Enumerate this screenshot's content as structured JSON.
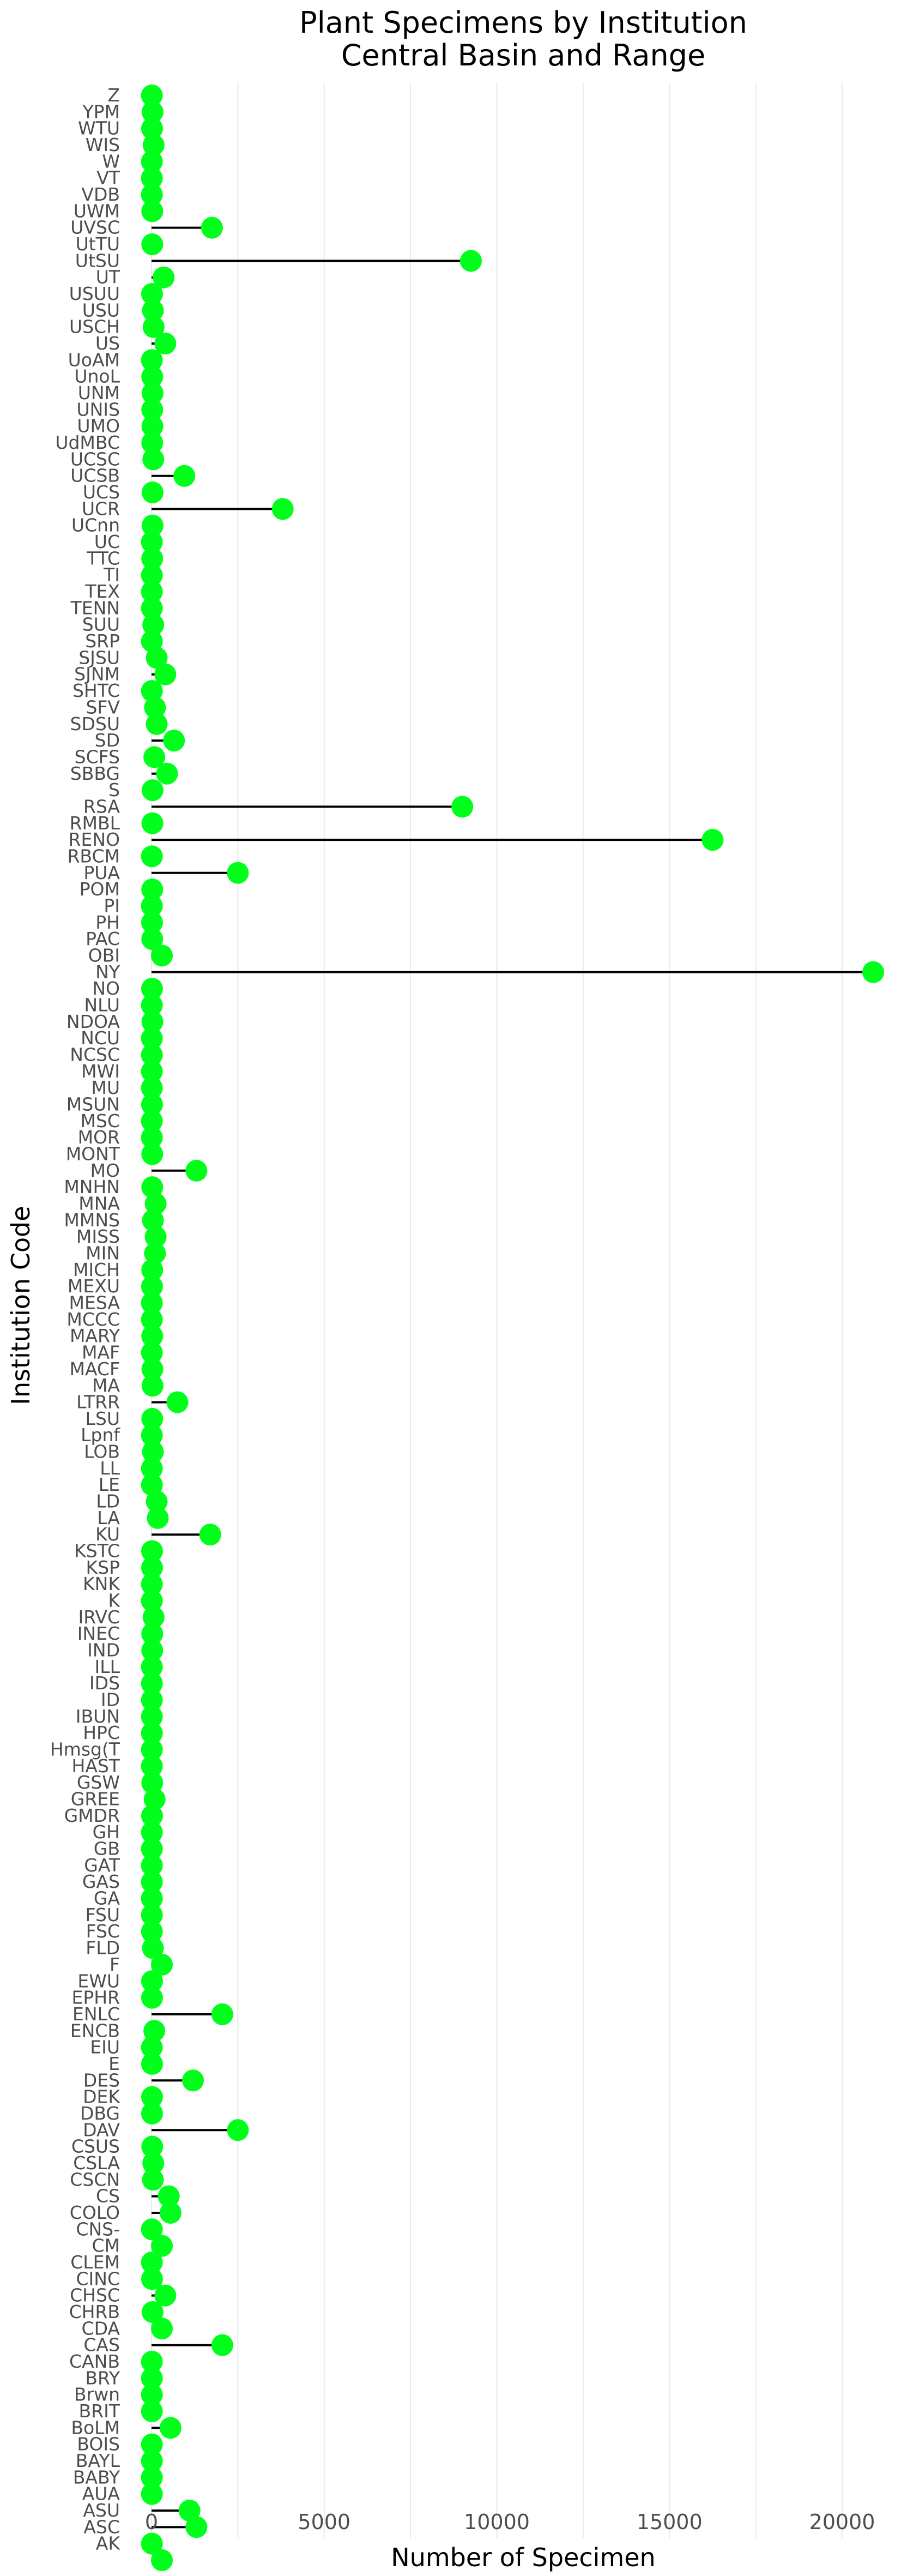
{
  "chart_data": {
    "type": "lollipop",
    "title": "Plant Specimens by Institution",
    "subtitle": "Central Basin and Range",
    "xlabel": "Number of Specimen",
    "ylabel": "Institution Code",
    "xlim": [
      -600,
      21500
    ],
    "x_ticks": [
      0,
      5000,
      10000,
      15000,
      20000
    ],
    "grid": "vertical",
    "point_color": "#00ff1a",
    "stem_color": "#000000",
    "legend": "none",
    "categories": [
      "Z",
      "YPM",
      "WTU",
      "WIS",
      "W",
      "VT",
      "VDB",
      "UWM",
      "UVSC",
      "UtTU",
      "UtSU",
      "UT",
      "USUU",
      "USU",
      "USCH",
      "US",
      "UoAM",
      "UnoL",
      "UNM",
      "UNIS",
      "UMO",
      "UdMBC",
      "UCSC",
      "UCSB",
      "UCS",
      "UCR",
      "UCnn",
      "UC",
      "TTC",
      "TI",
      "TEX",
      "TENN",
      "SUU",
      "SRP",
      "SJSU",
      "SJNM",
      "SHTC",
      "SFV",
      "SDSU",
      "SD",
      "SCFS",
      "SBBG",
      "S",
      "RSA",
      "RMBL",
      "RENO",
      "RBCM",
      "PUA",
      "POM",
      "PI",
      "PH",
      "PAC",
      "OBI",
      "NY",
      "NO",
      "NLU",
      "NDOA",
      "NCU",
      "NCSC",
      "MWI",
      "MU",
      "MSUN",
      "MSC",
      "MOR",
      "MONT",
      "MO",
      "MNHN",
      "MNA",
      "MMNS",
      "MISS",
      "MIN",
      "MICH",
      "MEXU",
      "MESA",
      "MCCC",
      "MARY",
      "MAF",
      "MACF",
      "MA",
      "LTRR",
      "LSU",
      "Lpnf",
      "LOB",
      "LL",
      "LE",
      "LD",
      "LA",
      "KU",
      "KSTC",
      "KSP",
      "KNK",
      "K",
      "IRVC",
      "INEC",
      "IND",
      "ILL",
      "IDS",
      "ID",
      "IBUN",
      "HPC",
      "Hmsg(T",
      "HAST",
      "GSW",
      "GREE",
      "GMDR",
      "GH",
      "GB",
      "GAT",
      "GAS",
      "GA",
      "FSU",
      "FSC",
      "FLD",
      "F",
      "EWU",
      "EPHR",
      "ENLC",
      "ENCB",
      "EIU",
      "E",
      "DES",
      "DEK",
      "DBG",
      "DAV",
      "CSUS",
      "CSLA",
      "CSCN",
      "CS",
      "COLO",
      "CNS-",
      "CM",
      "CLEM",
      "CINC",
      "CHSC",
      "CHRB",
      "CDA",
      "CAS",
      "CANB",
      "BRY",
      "Brwn",
      "BRIT",
      "BoLM",
      "BOIS",
      "BAYL",
      "BABY",
      "AUA",
      "ASU",
      "ASC",
      "AK",
      ""
    ],
    "values": [
      10,
      30,
      15,
      60,
      10,
      10,
      10,
      20,
      1750,
      20,
      9250,
      350,
      15,
      40,
      60,
      400,
      10,
      20,
      30,
      20,
      25,
      20,
      50,
      950,
      30,
      3800,
      30,
      10,
      20,
      10,
      10,
      10,
      50,
      10,
      150,
      400,
      10,
      100,
      150,
      650,
      80,
      450,
      30,
      9000,
      25,
      16250,
      10,
      2500,
      20,
      10,
      15,
      20,
      300,
      20900,
      15,
      10,
      25,
      10,
      10,
      10,
      10,
      15,
      10,
      10,
      20,
      1300,
      20,
      120,
      40,
      120,
      100,
      20,
      15,
      10,
      10,
      20,
      10,
      25,
      30,
      750,
      20,
      10,
      40,
      10,
      10,
      150,
      180,
      1700,
      15,
      15,
      10,
      10,
      60,
      20,
      20,
      10,
      10,
      10,
      10,
      10,
      10,
      10,
      20,
      90,
      15,
      10,
      10,
      10,
      10,
      10,
      10,
      10,
      40,
      300,
      15,
      15,
      2050,
      80,
      10,
      15,
      1200,
      15,
      15,
      2500,
      20,
      50,
      40,
      500,
      550,
      10,
      300,
      10,
      15,
      400,
      30,
      300,
      2050,
      10,
      10,
      10,
      10,
      550,
      10,
      10,
      10,
      10,
      1100,
      1300,
      10,
      300
    ]
  }
}
